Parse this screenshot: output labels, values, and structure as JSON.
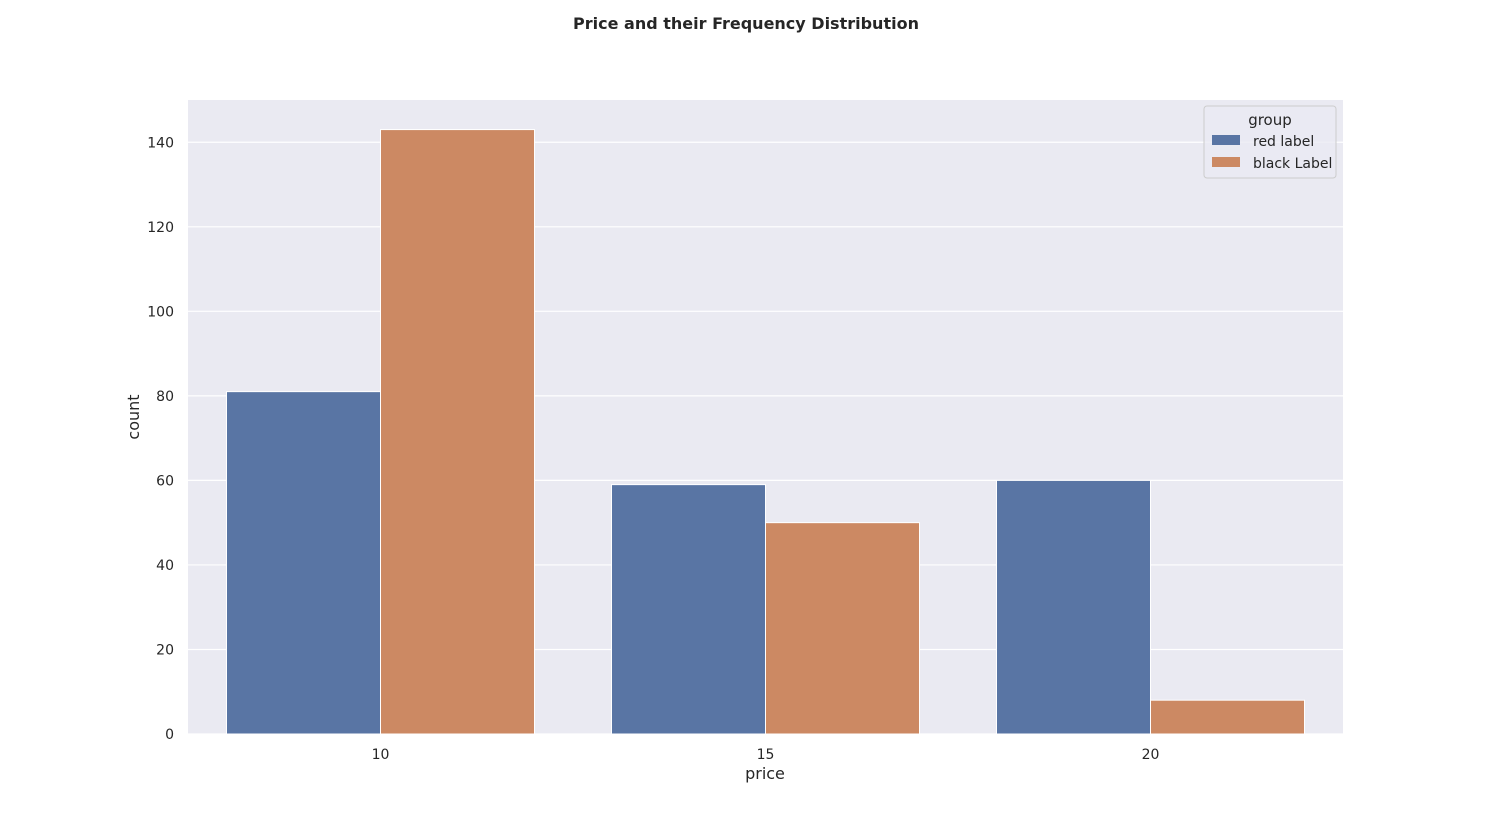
{
  "chart_data": {
    "type": "bar",
    "title": "Price and their Frequency Distribution",
    "xlabel": "price",
    "ylabel": "count",
    "categories": [
      "10",
      "15",
      "20"
    ],
    "series": [
      {
        "name": "red label",
        "color": "#5975a4",
        "values": [
          81,
          59,
          60
        ]
      },
      {
        "name": "black Label",
        "color": "#cc8963",
        "values": [
          143,
          50,
          8
        ]
      }
    ],
    "ylim": [
      0,
      150
    ],
    "yticks": [
      0,
      20,
      40,
      60,
      80,
      100,
      120,
      140
    ],
    "grid": true,
    "legend": {
      "title": "group",
      "placement": "top-right"
    }
  }
}
